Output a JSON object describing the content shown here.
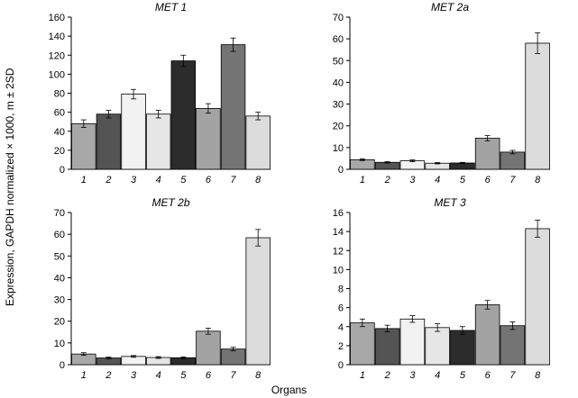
{
  "figure": {
    "ylabel": "Expression, GAPDH normalized × 1000, m ± 2SD",
    "xlabel": "Organs"
  },
  "chart_data": [
    {
      "type": "bar",
      "title": "MET 1",
      "categories": [
        "1",
        "2",
        "3",
        "4",
        "5",
        "6",
        "7",
        "8"
      ],
      "values": [
        48,
        58,
        79,
        58,
        114,
        64,
        131,
        56
      ],
      "errors": [
        4,
        4,
        5,
        4,
        6,
        5,
        7,
        4
      ],
      "ylim": [
        0,
        160
      ],
      "yticks": [
        "0",
        "20",
        "40",
        "60",
        "80",
        "100",
        "120",
        "140",
        "160"
      ],
      "bar_colors": [
        "#a8a8a8",
        "#545454",
        "#f2f2f2",
        "#e6e6e6",
        "#2c2c2c",
        "#a3a3a3",
        "#747474",
        "#dcdcdc"
      ]
    },
    {
      "type": "bar",
      "title": "MET 2a",
      "categories": [
        "1",
        "2",
        "3",
        "4",
        "5",
        "6",
        "7",
        "8"
      ],
      "values": [
        4.4,
        3.2,
        3.9,
        2.8,
        2.9,
        14.3,
        7.9,
        58
      ],
      "errors": [
        0.4,
        0.3,
        0.4,
        0.3,
        0.3,
        1.2,
        0.8,
        4.8
      ],
      "ylim": [
        0,
        70
      ],
      "yticks": [
        "0",
        "10",
        "20",
        "30",
        "40",
        "50",
        "60",
        "70"
      ],
      "bar_colors": [
        "#a8a8a8",
        "#545454",
        "#f2f2f2",
        "#e6e6e6",
        "#2c2c2c",
        "#a3a3a3",
        "#747474",
        "#dcdcdc"
      ]
    },
    {
      "type": "bar",
      "title": "MET 2b",
      "categories": [
        "1",
        "2",
        "3",
        "4",
        "5",
        "6",
        "7",
        "8"
      ],
      "values": [
        4.9,
        3.1,
        3.8,
        3.3,
        3.2,
        15.4,
        7.2,
        58.4
      ],
      "errors": [
        0.6,
        0.4,
        0.4,
        0.4,
        0.4,
        1.4,
        0.8,
        3.8
      ],
      "ylim": [
        0,
        70
      ],
      "yticks": [
        "0",
        "10",
        "20",
        "30",
        "40",
        "50",
        "60",
        "70"
      ],
      "bar_colors": [
        "#a8a8a8",
        "#545454",
        "#f2f2f2",
        "#e6e6e6",
        "#2c2c2c",
        "#a3a3a3",
        "#747474",
        "#dcdcdc"
      ]
    },
    {
      "type": "bar",
      "title": "MET 3",
      "categories": [
        "1",
        "2",
        "3",
        "4",
        "5",
        "6",
        "7",
        "8"
      ],
      "values": [
        4.4,
        3.8,
        4.8,
        3.9,
        3.6,
        6.3,
        4.1,
        14.3
      ],
      "errors": [
        0.4,
        0.35,
        0.35,
        0.4,
        0.4,
        0.45,
        0.4,
        0.9
      ],
      "ylim": [
        0,
        16
      ],
      "yticks": [
        "0",
        "2",
        "4",
        "6",
        "8",
        "10",
        "12",
        "14",
        "16"
      ],
      "bar_colors": [
        "#a8a8a8",
        "#545454",
        "#f2f2f2",
        "#e6e6e6",
        "#2c2c2c",
        "#a3a3a3",
        "#747474",
        "#dcdcdc"
      ]
    }
  ]
}
